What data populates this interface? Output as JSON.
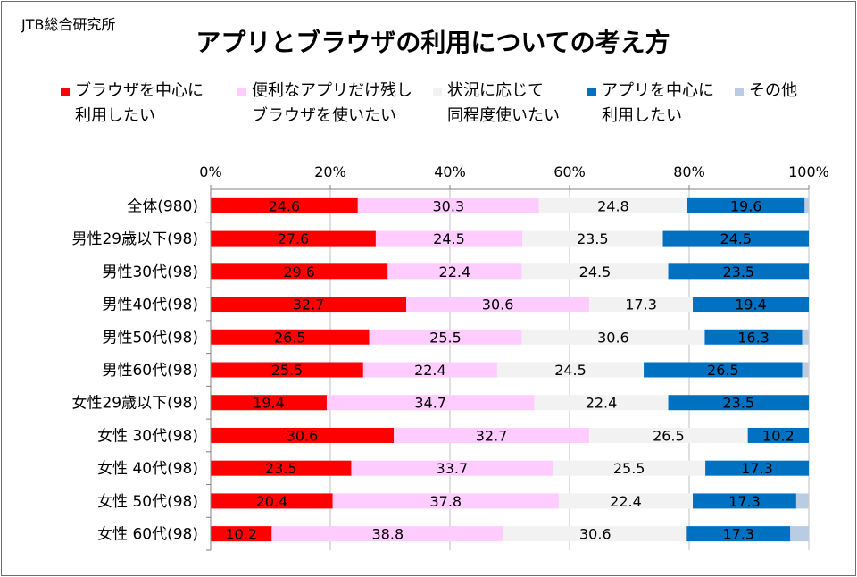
{
  "source": "JTB総合研究所",
  "chart_data": {
    "type": "bar",
    "orientation": "horizontal",
    "stacked": true,
    "title": "アプリとブラウザの利用についての考え方",
    "categories": [
      "全体(980)",
      "男性29歳以下(98)",
      "男性30代(98)",
      "男性40代(98)",
      "男性50代(98)",
      "男性60代(98)",
      "女性29歳以下(98)",
      "女性 30代(98)",
      "女性 40代(98)",
      "女性 50代(98)",
      "女性 60代(98)"
    ],
    "series": [
      {
        "name": "ブラウザを中心に\n利用したい",
        "color": "#ff0000",
        "values": [
          24.6,
          27.6,
          29.6,
          32.7,
          26.5,
          25.5,
          19.4,
          30.6,
          23.5,
          20.4,
          10.2
        ]
      },
      {
        "name": "便利なアプリだけ残し\nブラウザを使いたい",
        "color": "#ffccff",
        "values": [
          30.3,
          24.5,
          22.4,
          30.6,
          25.5,
          22.4,
          34.7,
          32.7,
          33.7,
          37.8,
          38.8
        ]
      },
      {
        "name": "状況に応じて\n同程度使いたい",
        "color": "#f2f2f2",
        "values": [
          24.8,
          23.5,
          24.5,
          17.3,
          30.6,
          24.5,
          22.4,
          26.5,
          25.5,
          22.4,
          30.6
        ]
      },
      {
        "name": "アプリを中心に\n利用したい",
        "color": "#0070c0",
        "values": [
          19.6,
          24.5,
          23.5,
          19.4,
          16.3,
          26.5,
          23.5,
          10.2,
          17.3,
          17.3,
          17.3
        ]
      },
      {
        "name": "その他",
        "color": "#b8cce4",
        "values": [
          0.6,
          0,
          0,
          0,
          1.0,
          1.0,
          0,
          0,
          0,
          2.0,
          3.1
        ]
      }
    ],
    "xlim": [
      0,
      100
    ],
    "x_ticks": [
      "0%",
      "20%",
      "40%",
      "60%",
      "80%",
      "100%"
    ],
    "grid": true,
    "legend_position": "top",
    "data_labels_shown_for": [
      0,
      1,
      2,
      3
    ]
  }
}
